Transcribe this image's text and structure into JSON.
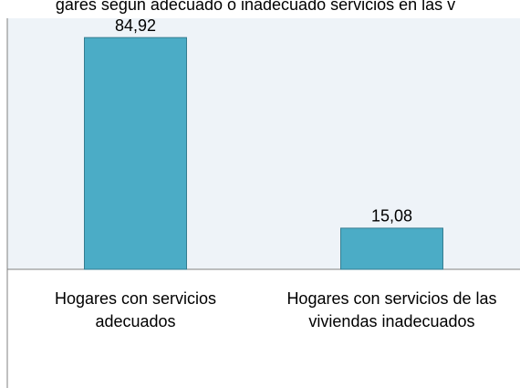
{
  "chart_data": {
    "type": "bar",
    "title": "gares según adecuado o inadecuado servicios en las v",
    "categories": [
      "Hogares con servicios adecuados",
      "Hogares con servicios de las viviendas inadecuados"
    ],
    "values": [
      84.92,
      15.08
    ],
    "value_labels": [
      "84,92",
      "15,08"
    ],
    "color": "#4bacc6",
    "ylim": [
      0,
      92
    ]
  }
}
